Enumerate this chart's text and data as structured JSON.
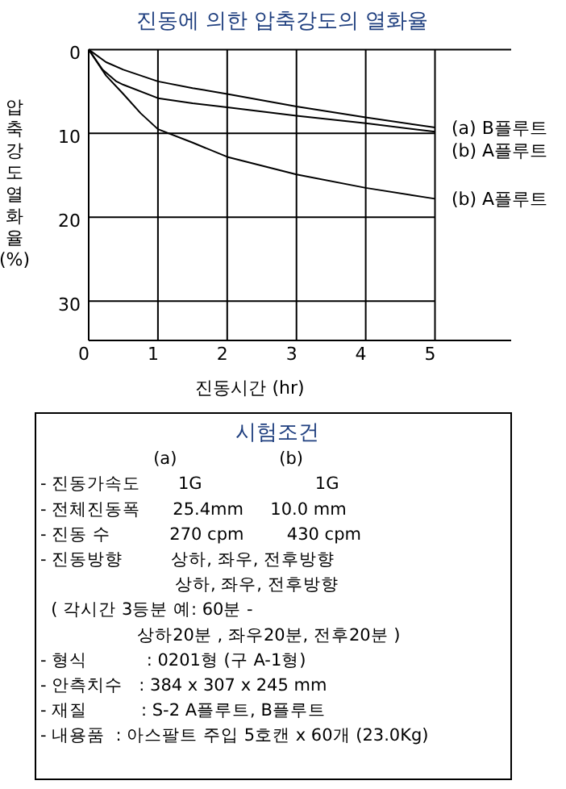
{
  "chart_data": {
    "type": "line",
    "title": "진동에 의한 압축강도의 열화율",
    "xlabel": "진동시간 (hr)",
    "ylabel": "압축강도열화율(%)",
    "xlim": [
      0,
      6.1
    ],
    "xticks": [
      0,
      1,
      2,
      3,
      4,
      5
    ],
    "ylim": [
      34.7,
      0
    ],
    "yticks": [
      0,
      10,
      20,
      30
    ],
    "grid": true,
    "series": [
      {
        "name": "(a) B플루트",
        "color": "#000000",
        "x": [
          0,
          0.25,
          0.5,
          1,
          1.5,
          2,
          3,
          4,
          5
        ],
        "values": [
          0,
          1.5,
          2.4,
          3.8,
          4.6,
          5.3,
          6.8,
          8.1,
          9.3
        ]
      },
      {
        "name": "(b) A플루트",
        "color": "#000000",
        "x": [
          0,
          0.2,
          0.4,
          0.5,
          1,
          1.5,
          2,
          3,
          4,
          5
        ],
        "values": [
          0,
          2.4,
          3.8,
          4.2,
          5.8,
          6.4,
          6.9,
          7.9,
          8.8,
          9.8
        ]
      },
      {
        "name": "(b) A플루트",
        "color": "#000000",
        "x": [
          0,
          0.25,
          0.5,
          0.75,
          1,
          1.5,
          2,
          3,
          4,
          5
        ],
        "values": [
          0,
          3.1,
          5.3,
          7.6,
          9.5,
          11.1,
          12.8,
          14.9,
          16.5,
          17.8
        ]
      }
    ],
    "annotations": [
      "시험조건",
      "                     (a)                   (b)",
      "- 진동가속도       1G                     1G",
      "- 전체진동폭      25.4mm     10.0 mm",
      "- 진동 수           270 cpm        430 cpm",
      "- 진동방향         상하, 좌우, 전후방향",
      "                         상하, 좌우, 전후방향",
      "  ( 각시간 3등분 예: 60분 -",
      "                  상하20분 , 좌우20분, 전후20분 )",
      "- 형식           : 0201형 (구 A-1형)",
      "- 안측치수   : 384 x 307 x 245 mm",
      "- 재질          : S-2 A플루트, B플루트",
      "- 내용품  : 아스팔트 주입 5호캔 x 60개 (23.0Kg)"
    ]
  }
}
